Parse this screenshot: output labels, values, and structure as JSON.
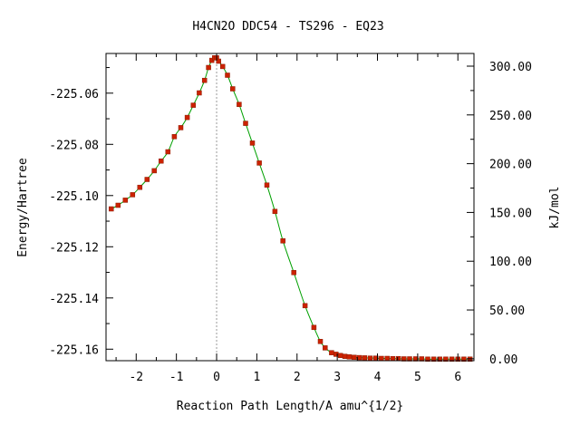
{
  "chart_data": {
    "type": "line",
    "title": "H4CN2O   DDC54 - TS296 - EQ23",
    "xlabel": "Reaction Path Length/A amu^{1/2}",
    "ylabel": "Energy/Hartree",
    "y2label": "kJ/mol",
    "xlim": [
      -2.75,
      6.4
    ],
    "ylim": [
      -225.1645,
      -225.0445
    ],
    "y2lim": [
      -2.0,
      313.0
    ],
    "x_ticks": [
      -2,
      -1,
      0,
      1,
      2,
      3,
      4,
      5,
      6
    ],
    "x_tick_labels": [
      "-2",
      "-1",
      "0",
      "1",
      "2",
      "3",
      "4",
      "5",
      "6"
    ],
    "y_ticks": [
      -225.06,
      -225.08,
      -225.1,
      -225.12,
      -225.14,
      -225.16
    ],
    "y_tick_labels": [
      "-225.06",
      "-225.08",
      "-225.10",
      "-225.12",
      "-225.14",
      "-225.16"
    ],
    "y2_ticks": [
      0,
      50,
      100,
      150,
      200,
      250,
      300
    ],
    "y2_tick_labels": [
      "0.00",
      "50.00",
      "100.00",
      "150.00",
      "200.00",
      "250.00",
      "300.00"
    ],
    "ts_marker_x": 0,
    "grid": false,
    "colors": {
      "line": "#00a000",
      "point": "#cc2200",
      "ts_line": "#999999",
      "axis": "#000000"
    },
    "series": [
      {
        "x": [
          -2.62,
          -2.45,
          -2.27,
          -2.09,
          -1.91,
          -1.73,
          -1.55,
          -1.38,
          -1.21,
          -1.05,
          -0.89,
          -0.73,
          -0.58,
          -0.43,
          -0.3,
          -0.2,
          -0.12,
          -0.05,
          0.0,
          0.05,
          0.15,
          0.27,
          0.4,
          0.56,
          0.72,
          0.89,
          1.06,
          1.25,
          1.45,
          1.65,
          1.92,
          2.2,
          2.42,
          2.58,
          2.7,
          2.86,
          2.97,
          3.08,
          3.19,
          3.3,
          3.42,
          3.55,
          3.68,
          3.82,
          3.96,
          4.1,
          4.24,
          4.38,
          4.52,
          4.66,
          4.8,
          4.95,
          5.1,
          5.25,
          5.4,
          5.55,
          5.7,
          5.85,
          6.0,
          6.15,
          6.3
        ],
        "y": [
          -225.1052,
          -225.1038,
          -225.1018,
          -225.0997,
          -225.0968,
          -225.0937,
          -225.0903,
          -225.0865,
          -225.0829,
          -225.077,
          -225.0735,
          -225.0695,
          -225.0647,
          -225.0599,
          -225.055,
          -225.05,
          -225.0472,
          -225.0462,
          -225.0462,
          -225.0475,
          -225.0496,
          -225.053,
          -225.0583,
          -225.0644,
          -225.0718,
          -225.0795,
          -225.0873,
          -225.0959,
          -225.1062,
          -225.1177,
          -225.1301,
          -225.143,
          -225.1515,
          -225.157,
          -225.1595,
          -225.1614,
          -225.162,
          -225.1625,
          -225.1628,
          -225.163,
          -225.1632,
          -225.1633,
          -225.1634,
          -225.1635,
          -225.1635,
          -225.1636,
          -225.1636,
          -225.1637,
          -225.1637,
          -225.1638,
          -225.1638,
          -225.1638,
          -225.1638,
          -225.1639,
          -225.1639,
          -225.1639,
          -225.1639,
          -225.1639,
          -225.1639,
          -225.1639,
          -225.1639
        ]
      }
    ]
  }
}
